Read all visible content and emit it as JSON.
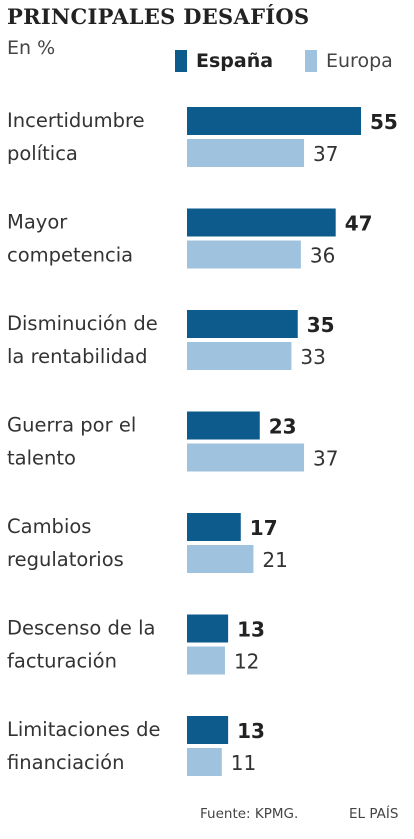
{
  "header": {
    "title": "PRINCIPALES DESAFÍOS",
    "subtitle": "En %"
  },
  "legend": {
    "espana": "España",
    "europa": "Europa"
  },
  "colors": {
    "espana": "#0d5a8d",
    "europa": "#9fc3df"
  },
  "chart_data": {
    "type": "bar",
    "orientation": "horizontal",
    "title": "PRINCIPALES DESAFÍOS",
    "subtitle": "En %",
    "categories": [
      [
        "Incertidumbre",
        "política"
      ],
      [
        "Mayor",
        "competencia"
      ],
      [
        "Disminución de",
        "la rentabilidad"
      ],
      [
        "Guerra por el",
        "talento"
      ],
      [
        "Cambios",
        "regulatorios"
      ],
      [
        "Descenso de la",
        "facturación"
      ],
      [
        "Limitaciones de",
        "financiación"
      ]
    ],
    "series": [
      {
        "name": "España",
        "values": [
          55,
          47,
          35,
          23,
          17,
          13,
          13
        ]
      },
      {
        "name": "Europa",
        "values": [
          37,
          36,
          33,
          37,
          21,
          12,
          11
        ]
      }
    ],
    "xlim": [
      0,
      55
    ],
    "grid": false,
    "legend_position": "top-right"
  },
  "footer": {
    "source": "Fuente: KPMG.",
    "brand": "EL PAÍS"
  }
}
